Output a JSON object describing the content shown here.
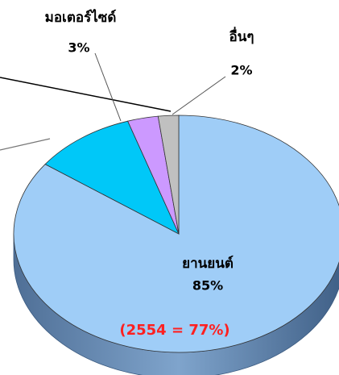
{
  "chart_data": {
    "type": "pie",
    "categories": [
      "ยานยนต์",
      null,
      "มอเตอร์ไซด์",
      "อื่นๆ"
    ],
    "values": [
      85,
      10,
      3,
      2
    ],
    "value_labels": [
      "85%",
      null,
      "3%",
      "2%"
    ],
    "colors": [
      "#9fcdf7",
      "#00c8f8",
      "#cc99ff",
      "#c0c0c0"
    ],
    "annotation": "(2554 = 77%)"
  }
}
